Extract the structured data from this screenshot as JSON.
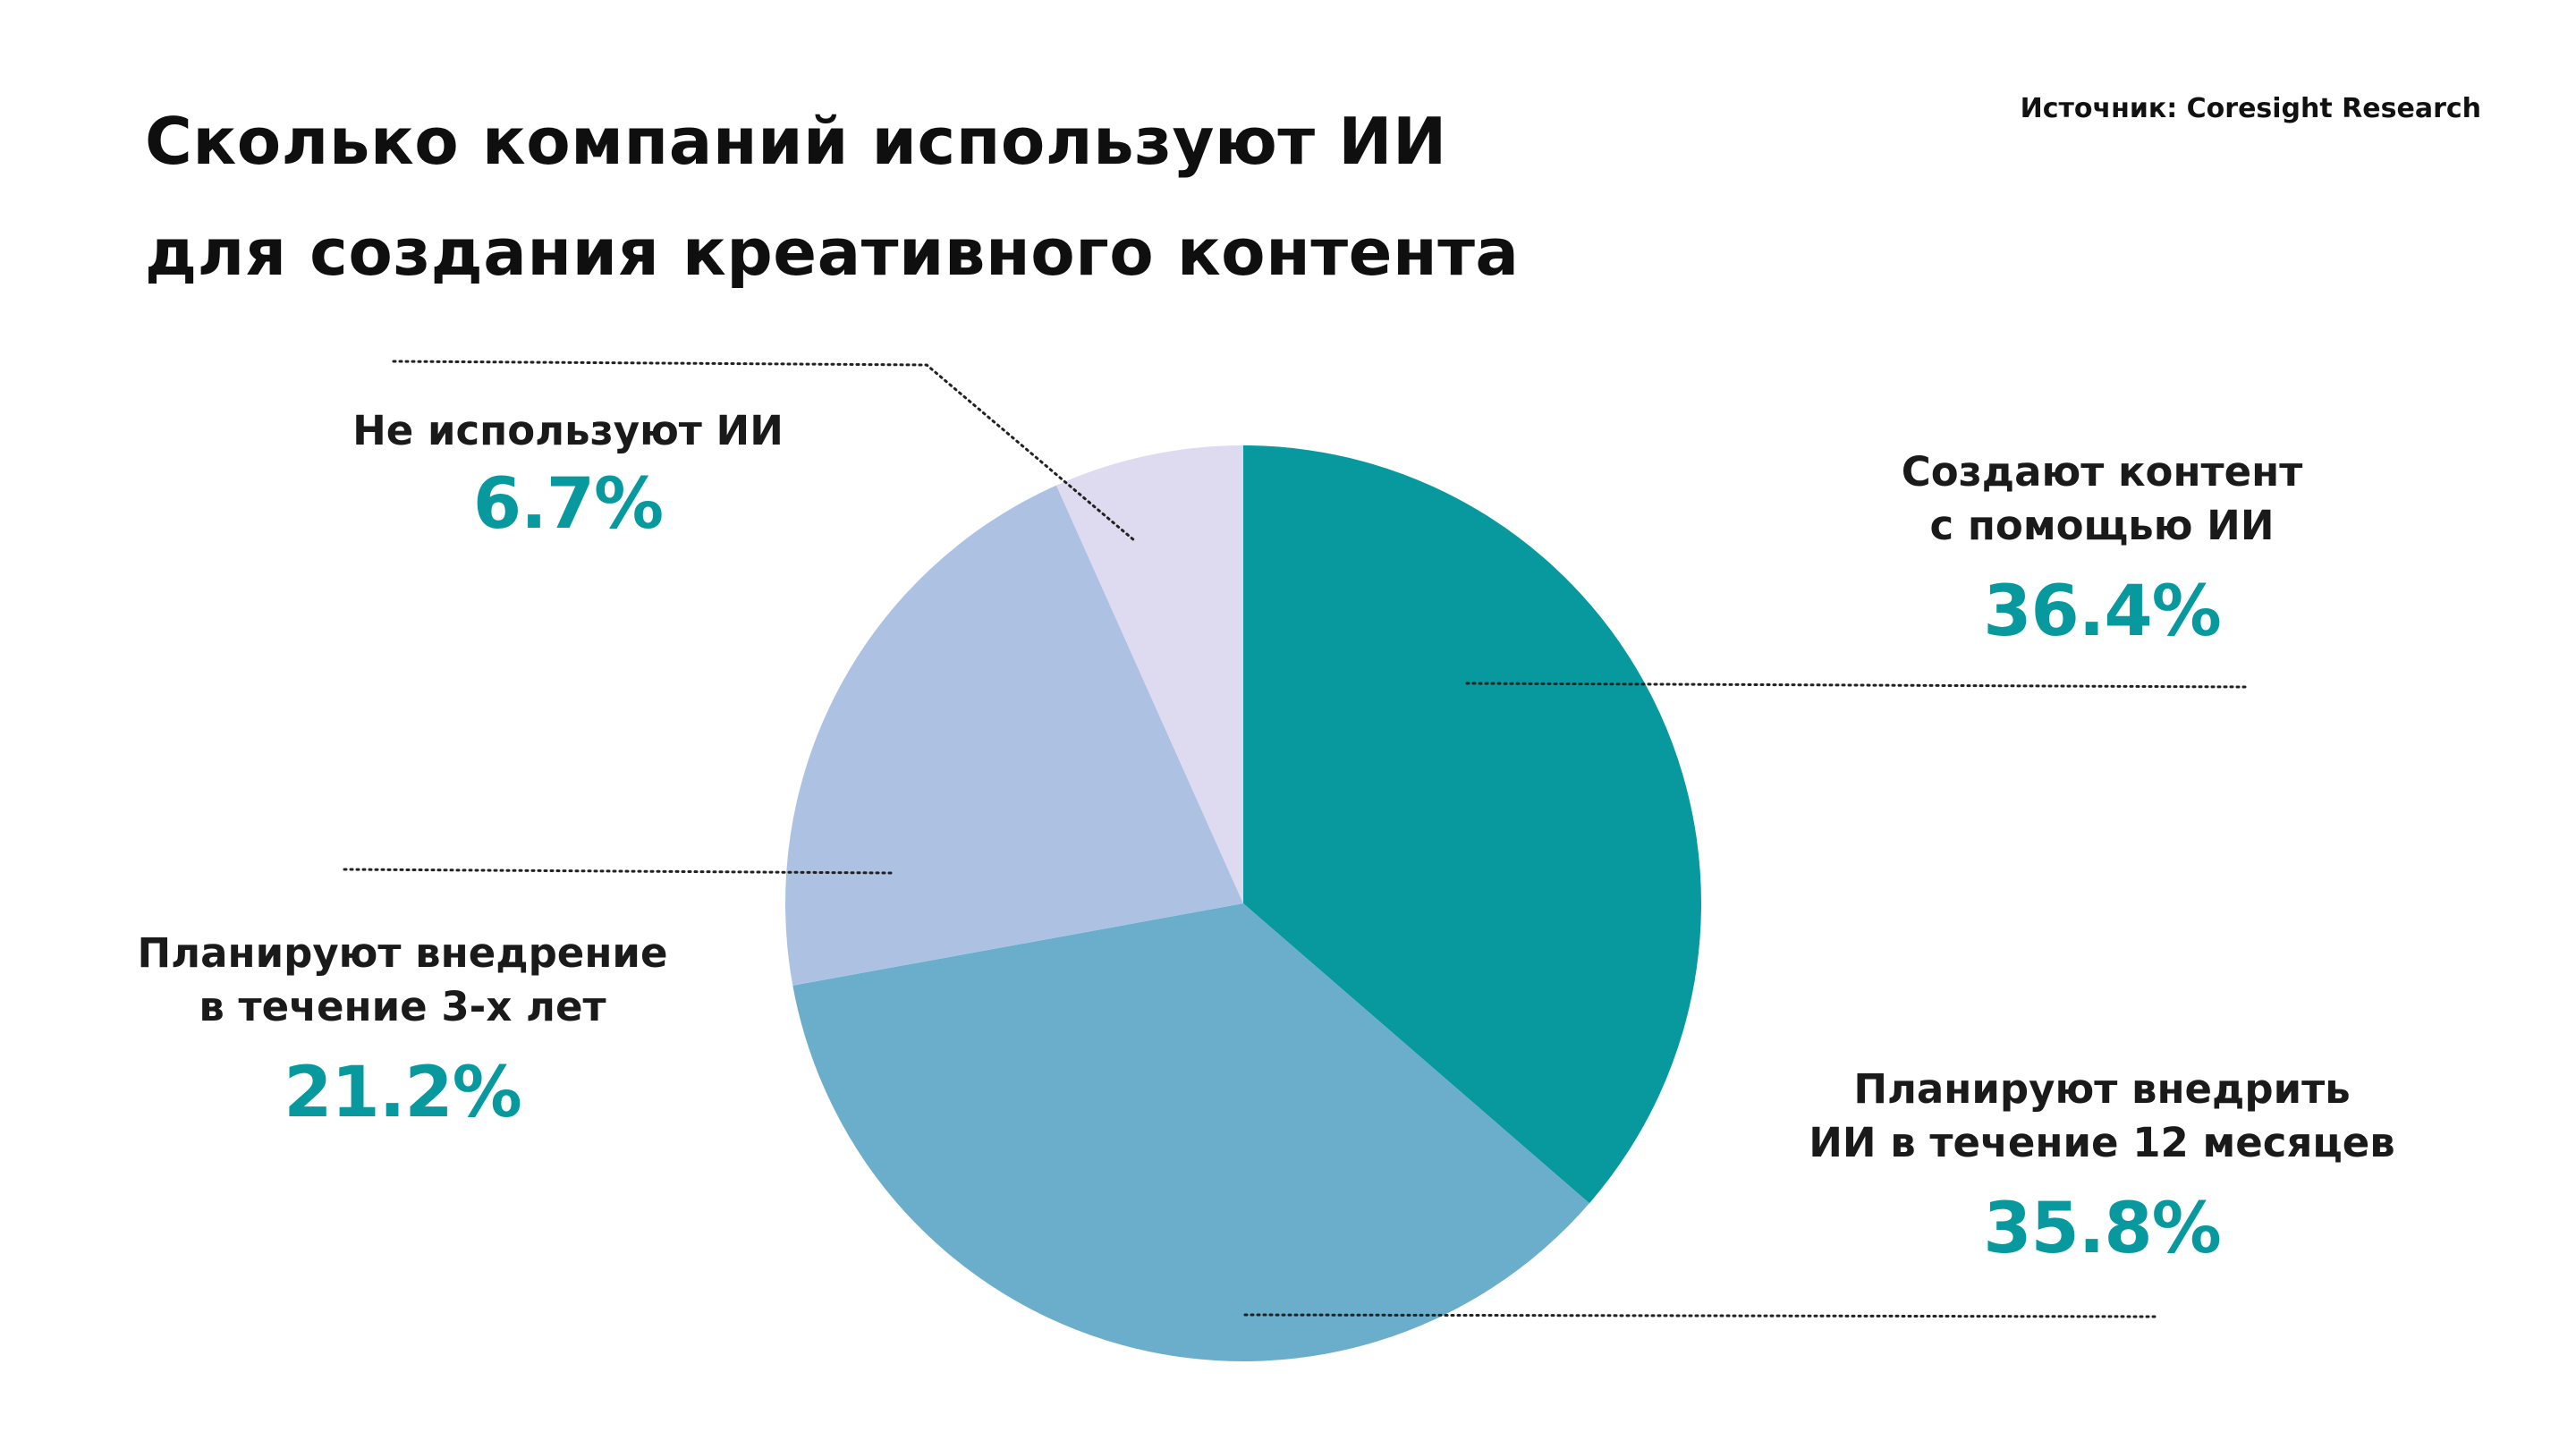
{
  "title": {
    "line1": "Сколько компаний используют ИИ",
    "line2": "для создания креативного контента"
  },
  "source": "Источник: Coresight Research",
  "colors": {
    "accent": "#07999e",
    "slice_1": "#07999e",
    "slice_2": "#6aaecb",
    "slice_3": "#adc2e3",
    "slice_4": "#dedaef",
    "leader_line": "#222222"
  },
  "chart_data": {
    "type": "pie",
    "title": "Сколько компаний используют ИИ для создания креативного контента",
    "start": "12 o'clock",
    "direction": "clockwise",
    "slices": [
      {
        "label_lines": [
          "Создают контент",
          "с помощью ИИ"
        ],
        "value": 36.4,
        "value_label": "36.4%",
        "color": "#07999e"
      },
      {
        "label_lines": [
          "Планируют внедрить",
          "ИИ в течение 12 месяцев"
        ],
        "value": 35.8,
        "value_label": "35.8%",
        "color": "#6aaecb"
      },
      {
        "label_lines": [
          "Планируют внедрение",
          "в течение 3-х лет"
        ],
        "value": 21.2,
        "value_label": "21.2%",
        "color": "#adc2e3"
      },
      {
        "label_lines": [
          "Не используют ИИ"
        ],
        "value": 6.7,
        "value_label": "6.7%",
        "color": "#dedaef"
      }
    ]
  }
}
